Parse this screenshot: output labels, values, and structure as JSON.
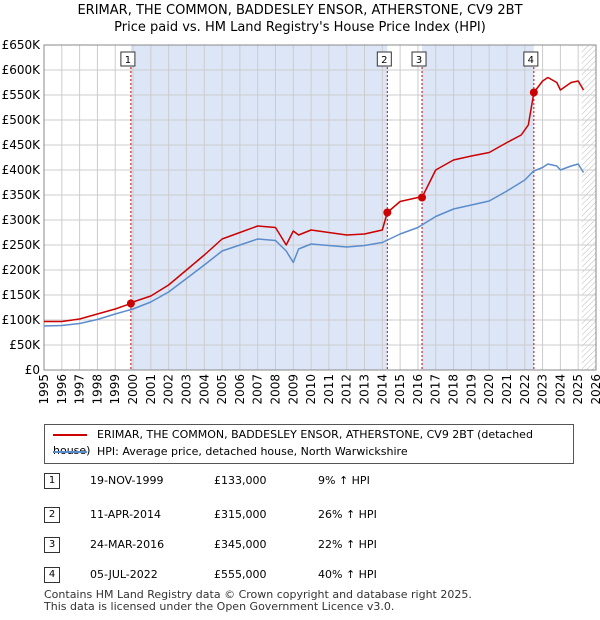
{
  "title": {
    "line1": "ERIMAR, THE COMMON, BADDESLEY ENSOR, ATHERSTONE, CV9 2BT",
    "line2": "Price paid vs. HM Land Registry's House Price Index (HPI)"
  },
  "colors": {
    "property": "#cc0000",
    "hpi": "#5b8ccc",
    "shade": "#dde6f7",
    "grid": "#cccccc",
    "marker_line": "#cc0000"
  },
  "legend": {
    "property_label": "ERIMAR, THE COMMON, BADDESLEY ENSOR, ATHERSTONE, CV9 2BT (detached house)",
    "hpi_label": "HPI: Average price, detached house, North Warwickshire"
  },
  "sales": [
    {
      "num": "1",
      "date": "19-NOV-1999",
      "price": "£133,000",
      "hpi": "9% ↑ HPI"
    },
    {
      "num": "2",
      "date": "11-APR-2014",
      "price": "£315,000",
      "hpi": "26% ↑ HPI"
    },
    {
      "num": "3",
      "date": "24-MAR-2016",
      "price": "£345,000",
      "hpi": "22% ↑ HPI"
    },
    {
      "num": "4",
      "date": "05-JUL-2022",
      "price": "£555,000",
      "hpi": "40% ↑ HPI"
    }
  ],
  "footer": {
    "line1": "Contains HM Land Registry data © Crown copyright and database right 2025.",
    "line2": "This data is licensed under the Open Government Licence v3.0."
  },
  "chart_data": {
    "type": "line",
    "title": "Price paid vs. HM Land Registry's House Price Index (HPI)",
    "xlim": [
      1995,
      2026
    ],
    "ylim": [
      0,
      650000
    ],
    "y_ticks": [
      0,
      50000,
      100000,
      150000,
      200000,
      250000,
      300000,
      350000,
      400000,
      450000,
      500000,
      550000,
      600000,
      650000
    ],
    "y_tick_labels": [
      "£0",
      "£50K",
      "£100K",
      "£150K",
      "£200K",
      "£250K",
      "£300K",
      "£350K",
      "£400K",
      "£450K",
      "£500K",
      "£550K",
      "£600K",
      "£650K"
    ],
    "x_ticks": [
      "1995",
      "1996",
      "1997",
      "1998",
      "1999",
      "2000",
      "2001",
      "2002",
      "2003",
      "2004",
      "2005",
      "2006",
      "2007",
      "2008",
      "2009",
      "2010",
      "2011",
      "2012",
      "2013",
      "2014",
      "2015",
      "2016",
      "2017",
      "2018",
      "2019",
      "2020",
      "2021",
      "2022",
      "2023",
      "2024",
      "2025",
      "2026"
    ],
    "shaded_ranges": [
      [
        1999.88,
        2014.28
      ],
      [
        2016.23,
        2022.51
      ]
    ],
    "hatched_from": 2025.2,
    "markers": [
      {
        "label": "1",
        "x": 1999.88,
        "y": 133000
      },
      {
        "label": "2",
        "x": 2014.28,
        "y": 315000
      },
      {
        "label": "3",
        "x": 2016.23,
        "y": 345000
      },
      {
        "label": "4",
        "x": 2022.51,
        "y": 555000
      }
    ],
    "series": [
      {
        "name": "ERIMAR, THE COMMON, BADDESLEY ENSOR, ATHERSTONE, CV9 2BT (detached house)",
        "x": [
          1995,
          1996,
          1997,
          1998,
          1999,
          1999.88,
          2000,
          2001,
          2002,
          2003,
          2004,
          2005,
          2006,
          2007,
          2008,
          2008.6,
          2009,
          2009.3,
          2010,
          2011,
          2012,
          2013,
          2014,
          2014.28,
          2015,
          2016,
          2016.23,
          2017,
          2018,
          2019,
          2020,
          2021,
          2021.8,
          2022.2,
          2022.51,
          2023,
          2023.3,
          2023.8,
          2024,
          2024.6,
          2025,
          2025.3
        ],
        "values": [
          97000,
          97000,
          102000,
          112000,
          122000,
          133000,
          136000,
          148000,
          170000,
          200000,
          230000,
          262000,
          275000,
          288000,
          285000,
          250000,
          278000,
          270000,
          280000,
          275000,
          270000,
          272000,
          280000,
          315000,
          337000,
          345000,
          345000,
          400000,
          420000,
          428000,
          435000,
          455000,
          470000,
          490000,
          555000,
          578000,
          585000,
          575000,
          560000,
          575000,
          578000,
          560000
        ]
      },
      {
        "name": "HPI: Average price, detached house, North Warwickshire",
        "x": [
          1995,
          1996,
          1997,
          1998,
          1999,
          2000,
          2001,
          2002,
          2003,
          2004,
          2005,
          2006,
          2007,
          2008,
          2008.6,
          2009,
          2009.3,
          2010,
          2011,
          2012,
          2013,
          2014,
          2015,
          2016,
          2017,
          2018,
          2019,
          2020,
          2021,
          2022,
          2022.5,
          2023,
          2023.3,
          2023.8,
          2024,
          2024.6,
          2025,
          2025.3
        ],
        "values": [
          88000,
          89000,
          93000,
          101000,
          112000,
          122000,
          136000,
          156000,
          183000,
          210000,
          238000,
          250000,
          262000,
          259000,
          238000,
          215000,
          242000,
          252000,
          249000,
          246000,
          249000,
          255000,
          272000,
          285000,
          307000,
          322000,
          330000,
          338000,
          358000,
          380000,
          398000,
          405000,
          412000,
          408000,
          400000,
          408000,
          412000,
          395000
        ]
      }
    ]
  }
}
